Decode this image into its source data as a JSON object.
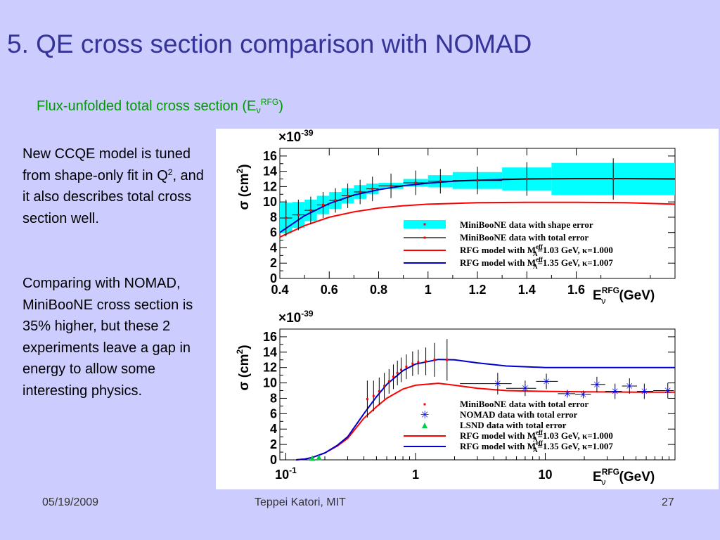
{
  "slide": {
    "title": "5. QE cross section comparison with NOMAD",
    "subtitle": {
      "text": "Flux-unfolded total cross section (E",
      "sub": "ν",
      "sup": "RFG",
      "close": ")"
    },
    "paragraph1": {
      "text": "New CCQE model is tuned from shape-only fit in Q",
      "sup": "2",
      "text2": ", and it also describes total cross section well."
    },
    "paragraph2": "Comparing with NOMAD, MiniBooNE cross section is 35% higher, but these 2 experiments leave a gap in energy to allow some interesting physics."
  },
  "footer": {
    "date": "05/19/2009",
    "author": "Teppei Katori, MIT",
    "page": "27"
  },
  "colors": {
    "background": "#ccccff",
    "title": "#333399",
    "subtitle": "#009900",
    "shape_error_band": "#00ffff",
    "rfg_103": "#ff0000",
    "rfg_135": "#0000cc",
    "nomad": "#0000ff",
    "lsnd": "#00cc44"
  },
  "chart_data": [
    {
      "type": "line",
      "title": "",
      "scale_label": "×10",
      "scale_exponent": "-39",
      "ylabel": "σ (cm",
      "ylabel_sup": "2",
      "ylabel_close": ")",
      "xlabel_main": "E",
      "xlabel_sub": "ν",
      "xlabel_sup": "RFG",
      "xlabel_unit": "(GeV)",
      "xlim": [
        0.4,
        2.0
      ],
      "ylim": [
        0,
        17
      ],
      "x_scale": "linear",
      "x_ticks": [
        "0.4",
        "0.6",
        "0.8",
        "1",
        "1.2",
        "1.4",
        "1.6"
      ],
      "y_ticks": [
        "0",
        "2",
        "4",
        "6",
        "8",
        "10",
        "12",
        "14",
        "16"
      ],
      "legend_position": "bottom-right",
      "legend": [
        {
          "label": "MiniBooNE data with shape error",
          "style": "band"
        },
        {
          "label": "MiniBooNE data with total error",
          "style": "errorbar"
        },
        {
          "label": "RFG model with M",
          "label_sup": "eff",
          "label_sub": "A",
          "label_rest": "=1.03 GeV, κ=1.000",
          "style": "red-line"
        },
        {
          "label": "RFG model with M",
          "label_sup": "eff",
          "label_sub": "A",
          "label_rest": "=1.35 GeV, κ=1.007",
          "style": "blue-line"
        }
      ],
      "miniboone": {
        "x": [
          0.425,
          0.475,
          0.525,
          0.575,
          0.625,
          0.675,
          0.725,
          0.775,
          0.85,
          0.95,
          1.05,
          1.2,
          1.4,
          1.75
        ],
        "xerr": [
          0.025,
          0.025,
          0.025,
          0.025,
          0.025,
          0.025,
          0.025,
          0.025,
          0.05,
          0.05,
          0.05,
          0.1,
          0.1,
          0.25
        ],
        "y": [
          7.9,
          8.3,
          8.9,
          9.6,
          10.2,
          10.8,
          11.3,
          11.7,
          12.1,
          12.5,
          12.7,
          12.8,
          13.0,
          13.0
        ],
        "shape_err": [
          2.0,
          1.7,
          1.4,
          1.2,
          1.1,
          1.0,
          0.9,
          0.7,
          0.4,
          0.5,
          0.8,
          1.1,
          1.5,
          2.1
        ],
        "total_err": [
          2.4,
          2.0,
          1.8,
          1.7,
          1.6,
          1.6,
          1.6,
          1.6,
          1.6,
          1.6,
          1.6,
          1.8,
          2.2,
          2.7
        ]
      },
      "rfg_103": {
        "x": [
          0.4,
          0.5,
          0.6,
          0.7,
          0.8,
          0.9,
          1.0,
          1.1,
          1.2,
          1.4,
          1.6,
          1.8,
          2.0
        ],
        "y": [
          5.4,
          6.9,
          8.0,
          8.7,
          9.2,
          9.5,
          9.7,
          9.8,
          9.9,
          9.95,
          9.95,
          9.9,
          9.7
        ]
      },
      "rfg_135": {
        "x": [
          0.4,
          0.5,
          0.6,
          0.7,
          0.8,
          0.9,
          1.0,
          1.1,
          1.2,
          1.4,
          1.6,
          1.8,
          2.0
        ],
        "y": [
          6.0,
          8.2,
          9.8,
          10.9,
          11.6,
          12.1,
          12.45,
          12.7,
          12.85,
          13.0,
          13.05,
          13.05,
          13.0
        ]
      }
    },
    {
      "type": "line",
      "title": "",
      "scale_label": "×10",
      "scale_exponent": "-39",
      "ylabel": "σ (cm",
      "ylabel_sup": "2",
      "ylabel_close": ")",
      "xlabel_main": "E",
      "xlabel_sub": "ν",
      "xlabel_sup": "RFG",
      "xlabel_unit": "(GeV)",
      "xlim": [
        0.09,
        100
      ],
      "ylim": [
        0,
        17
      ],
      "x_scale": "log",
      "x_ticks": [
        {
          "value": 0.1,
          "label": "10",
          "sup": "-1"
        },
        {
          "value": 1,
          "label": "1"
        },
        {
          "value": 10,
          "label": "10"
        }
      ],
      "y_ticks": [
        "0",
        "2",
        "4",
        "6",
        "8",
        "10",
        "12",
        "14",
        "16"
      ],
      "legend_position": "bottom-right",
      "legend": [
        {
          "label": "MiniBooNE data with total error",
          "style": "red-point"
        },
        {
          "label": "NOMAD data with total error",
          "style": "blue-star"
        },
        {
          "label": "LSND data with total error",
          "style": "green-triangle"
        },
        {
          "label": "RFG model with M",
          "label_sup": "eff",
          "label_sub": "A",
          "label_rest": "=1.03 GeV, κ=1.000",
          "style": "red-line"
        },
        {
          "label": "RFG model with M",
          "label_sup": "eff",
          "label_sub": "A",
          "label_rest": "=1.35 GeV, κ=1.007",
          "style": "blue-line"
        }
      ],
      "miniboone": {
        "x": [
          0.425,
          0.475,
          0.525,
          0.575,
          0.625,
          0.675,
          0.725,
          0.775,
          0.85,
          0.95,
          1.05,
          1.2,
          1.4,
          1.75
        ],
        "y": [
          7.9,
          8.3,
          8.9,
          9.6,
          10.2,
          10.8,
          11.3,
          11.7,
          12.1,
          12.5,
          12.7,
          12.8,
          13.0,
          13.0
        ],
        "err": [
          2.4,
          2.0,
          1.8,
          1.7,
          1.6,
          1.6,
          1.6,
          1.6,
          1.6,
          1.6,
          1.6,
          1.8,
          2.2,
          2.7
        ]
      },
      "nomad": {
        "x": [
          4.3,
          7.0,
          10.2,
          14.8,
          19.6,
          25.0,
          34.5,
          44.6,
          58.0,
          88.0
        ],
        "xlo": [
          2.2,
          5.0,
          8.5,
          12.5,
          17.0,
          22.5,
          29.0,
          39.0,
          51.0,
          68.0
        ],
        "xhi": [
          5.5,
          8.5,
          12.5,
          17.0,
          22.5,
          29.0,
          39.0,
          51.0,
          68.0,
          98.0
        ],
        "y": [
          9.9,
          9.3,
          10.2,
          8.6,
          8.5,
          9.8,
          8.9,
          9.6,
          8.9,
          9.0
        ],
        "err": [
          1.4,
          1.0,
          1.0,
          0.5,
          0.5,
          1.0,
          1.0,
          1.0,
          1.0,
          1.0
        ]
      },
      "lsnd": {
        "x": [
          0.16,
          0.18
        ],
        "y": [
          0.15,
          0.25
        ]
      },
      "rfg_103": {
        "x": [
          0.12,
          0.14,
          0.16,
          0.2,
          0.25,
          0.3,
          0.4,
          0.5,
          0.6,
          0.8,
          1.0,
          1.5,
          2.0,
          3.0,
          5.0,
          10,
          20,
          50,
          100
        ],
        "y": [
          0.0,
          0.1,
          0.3,
          0.9,
          1.8,
          2.8,
          5.4,
          6.9,
          8.0,
          9.2,
          9.7,
          9.95,
          9.7,
          9.3,
          9.0,
          8.9,
          8.85,
          8.8,
          8.8
        ]
      },
      "rfg_135": {
        "x": [
          0.12,
          0.14,
          0.16,
          0.2,
          0.25,
          0.3,
          0.4,
          0.5,
          0.6,
          0.8,
          1.0,
          1.5,
          2.0,
          3.0,
          5.0,
          10,
          20,
          50,
          100
        ],
        "y": [
          0.0,
          0.1,
          0.3,
          0.9,
          1.9,
          3.0,
          6.0,
          8.2,
          9.8,
          11.6,
          12.45,
          13.05,
          13.0,
          12.6,
          12.2,
          12.0,
          12.0,
          12.0,
          12.0
        ]
      }
    }
  ]
}
